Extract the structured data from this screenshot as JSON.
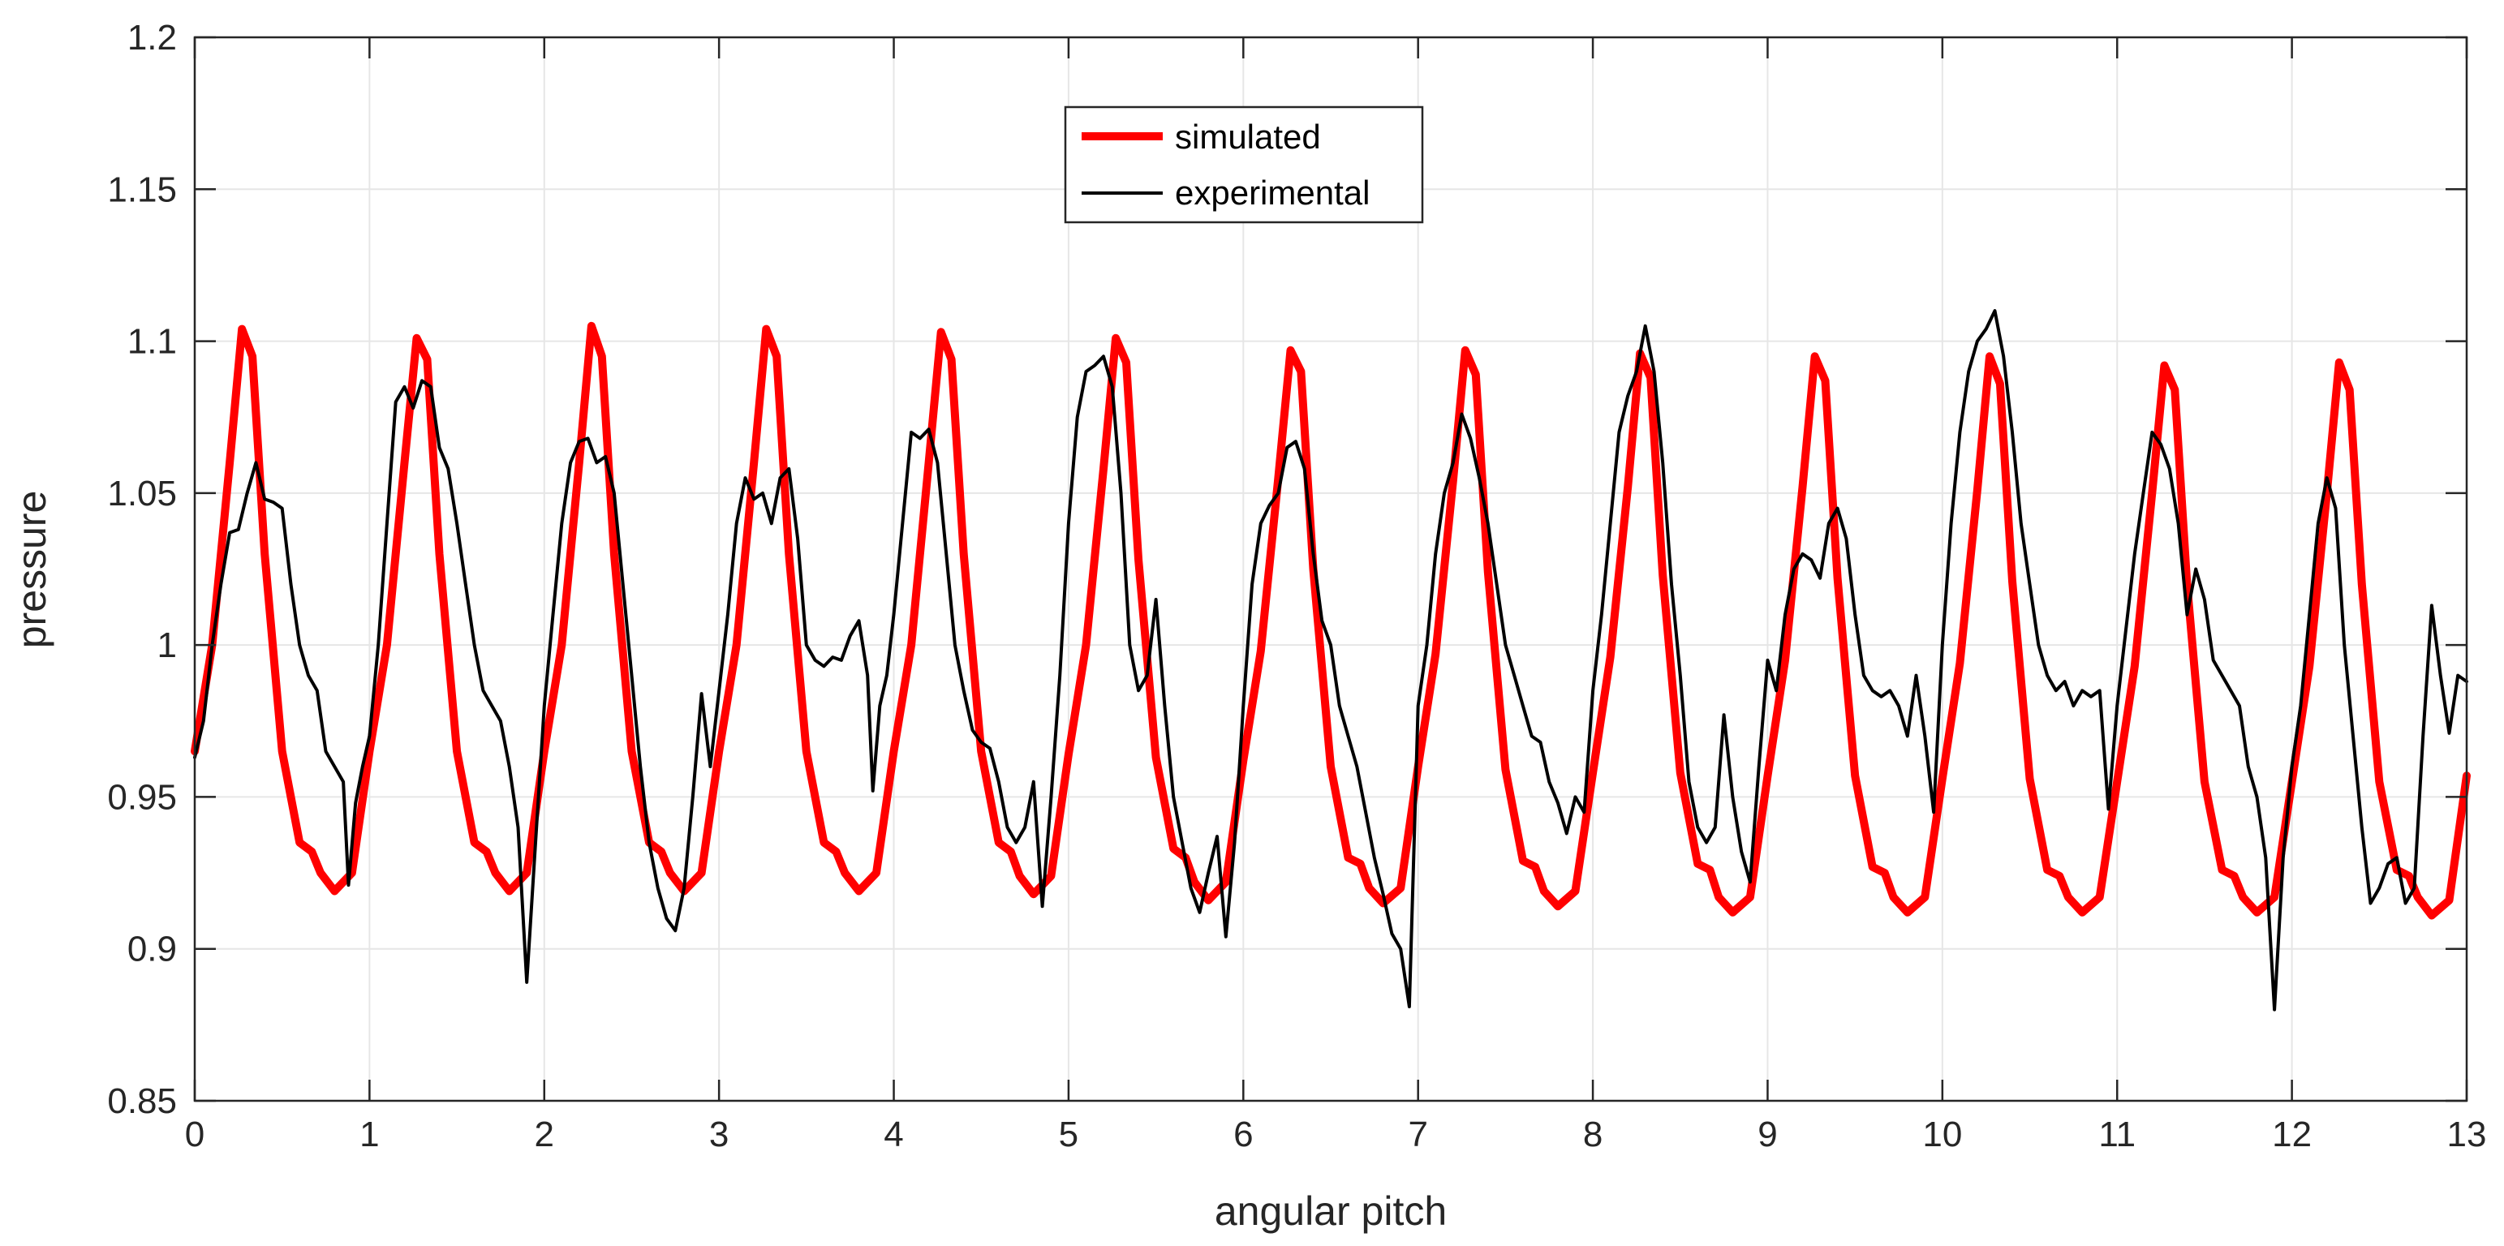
{
  "chart_data": {
    "type": "line",
    "xlabel": "angular pitch",
    "ylabel": "pressure",
    "xlim": [
      0,
      13
    ],
    "ylim": [
      0.85,
      1.2
    ],
    "xticks": [
      0,
      1,
      2,
      3,
      4,
      5,
      6,
      7,
      8,
      9,
      10,
      11,
      12,
      13
    ],
    "yticks": [
      0.85,
      0.9,
      0.95,
      1,
      1.05,
      1.1,
      1.15,
      1.2
    ],
    "xtick_labels": [
      "0",
      "1",
      "2",
      "3",
      "4",
      "5",
      "6",
      "7",
      "8",
      "9",
      "10",
      "11",
      "12",
      "13"
    ],
    "ytick_labels": [
      "0.85",
      "0.9",
      "0.95",
      "1",
      "1.05",
      "1.1",
      "1.15",
      "1.2"
    ],
    "grid": true,
    "legend_position": "top-center",
    "series": [
      {
        "name": "simulated",
        "color": "#ff0000",
        "x": [
          0,
          0.1,
          0.2,
          0.27,
          0.33,
          0.4,
          0.5,
          0.6,
          0.67,
          0.72,
          0.8,
          0.9,
          1.0,
          1.1,
          1.2,
          1.27,
          1.33,
          1.4,
          1.5,
          1.6,
          1.67,
          1.72,
          1.8,
          1.9,
          2.0,
          2.1,
          2.2,
          2.27,
          2.33,
          2.4,
          2.5,
          2.6,
          2.67,
          2.72,
          2.8,
          2.9,
          3.0,
          3.1,
          3.2,
          3.27,
          3.33,
          3.4,
          3.5,
          3.6,
          3.67,
          3.72,
          3.8,
          3.9,
          4.0,
          4.1,
          4.2,
          4.27,
          4.33,
          4.4,
          4.5,
          4.6,
          4.67,
          4.72,
          4.8,
          4.9,
          5.0,
          5.1,
          5.2,
          5.27,
          5.33,
          5.4,
          5.5,
          5.6,
          5.67,
          5.72,
          5.8,
          5.9,
          6.0,
          6.1,
          6.2,
          6.27,
          6.33,
          6.4,
          6.5,
          6.6,
          6.67,
          6.72,
          6.8,
          6.9,
          7.0,
          7.1,
          7.2,
          7.27,
          7.33,
          7.4,
          7.5,
          7.6,
          7.67,
          7.72,
          7.8,
          7.9,
          8.0,
          8.1,
          8.2,
          8.27,
          8.33,
          8.4,
          8.5,
          8.6,
          8.67,
          8.72,
          8.8,
          8.9,
          9.0,
          9.1,
          9.2,
          9.27,
          9.33,
          9.4,
          9.5,
          9.6,
          9.67,
          9.72,
          9.8,
          9.9,
          10.0,
          10.1,
          10.2,
          10.27,
          10.33,
          10.4,
          10.5,
          10.6,
          10.67,
          10.72,
          10.8,
          10.9,
          11.0,
          11.1,
          11.2,
          11.27,
          11.33,
          11.4,
          11.5,
          11.6,
          11.67,
          11.72,
          11.8,
          11.9,
          12.0,
          12.1,
          12.2,
          12.27,
          12.33,
          12.4,
          12.5,
          12.6,
          12.67,
          12.72,
          12.8,
          12.9,
          13.0
        ],
        "y": [
          0.965,
          1.0,
          1.06,
          1.104,
          1.095,
          1.03,
          0.965,
          0.935,
          0.932,
          0.925,
          0.919,
          0.925,
          0.965,
          1.0,
          1.06,
          1.101,
          1.094,
          1.03,
          0.965,
          0.935,
          0.932,
          0.925,
          0.919,
          0.925,
          0.965,
          1.0,
          1.06,
          1.105,
          1.095,
          1.03,
          0.965,
          0.935,
          0.932,
          0.925,
          0.919,
          0.925,
          0.965,
          1.0,
          1.06,
          1.104,
          1.095,
          1.03,
          0.965,
          0.935,
          0.932,
          0.925,
          0.919,
          0.925,
          0.965,
          1.0,
          1.06,
          1.103,
          1.094,
          1.03,
          0.965,
          0.935,
          0.932,
          0.924,
          0.918,
          0.924,
          0.964,
          1.0,
          1.058,
          1.101,
          1.093,
          1.028,
          0.963,
          0.933,
          0.93,
          0.922,
          0.916,
          0.922,
          0.962,
          0.998,
          1.055,
          1.097,
          1.09,
          1.025,
          0.96,
          0.93,
          0.928,
          0.92,
          0.915,
          0.92,
          0.96,
          0.997,
          1.054,
          1.097,
          1.089,
          1.024,
          0.959,
          0.929,
          0.927,
          0.919,
          0.914,
          0.919,
          0.958,
          0.996,
          1.052,
          1.096,
          1.088,
          1.023,
          0.958,
          0.928,
          0.926,
          0.917,
          0.912,
          0.917,
          0.957,
          0.995,
          1.052,
          1.095,
          1.087,
          1.022,
          0.957,
          0.927,
          0.925,
          0.917,
          0.912,
          0.917,
          0.956,
          0.994,
          1.051,
          1.095,
          1.086,
          1.021,
          0.956,
          0.926,
          0.924,
          0.917,
          0.912,
          0.917,
          0.955,
          0.993,
          1.05,
          1.092,
          1.084,
          1.02,
          0.955,
          0.926,
          0.924,
          0.917,
          0.912,
          0.917,
          0.955,
          0.993,
          1.05,
          1.093,
          1.084,
          1.02,
          0.955,
          0.926,
          0.924,
          0.917,
          0.911,
          0.916,
          0.957
        ]
      },
      {
        "name": "experimental",
        "color": "#000000",
        "x": [
          0,
          0.05,
          0.1,
          0.15,
          0.2,
          0.25,
          0.3,
          0.35,
          0.4,
          0.45,
          0.5,
          0.55,
          0.6,
          0.65,
          0.7,
          0.75,
          0.8,
          0.85,
          0.88,
          0.92,
          0.96,
          1.0,
          1.05,
          1.1,
          1.15,
          1.2,
          1.25,
          1.3,
          1.35,
          1.4,
          1.45,
          1.5,
          1.55,
          1.6,
          1.65,
          1.7,
          1.75,
          1.8,
          1.85,
          1.9,
          1.95,
          2.0,
          2.05,
          2.1,
          2.15,
          2.2,
          2.25,
          2.3,
          2.35,
          2.4,
          2.45,
          2.5,
          2.55,
          2.6,
          2.65,
          2.7,
          2.75,
          2.8,
          2.85,
          2.9,
          2.95,
          3.0,
          3.05,
          3.1,
          3.15,
          3.2,
          3.25,
          3.3,
          3.35,
          3.4,
          3.45,
          3.5,
          3.55,
          3.6,
          3.65,
          3.7,
          3.75,
          3.8,
          3.85,
          3.88,
          3.92,
          3.96,
          4.0,
          4.05,
          4.1,
          4.15,
          4.2,
          4.25,
          4.3,
          4.35,
          4.4,
          4.45,
          4.5,
          4.55,
          4.6,
          4.65,
          4.7,
          4.75,
          4.8,
          4.85,
          4.9,
          4.95,
          5.0,
          5.05,
          5.1,
          5.15,
          5.2,
          5.25,
          5.3,
          5.35,
          5.4,
          5.45,
          5.5,
          5.55,
          5.6,
          5.65,
          5.7,
          5.75,
          5.8,
          5.85,
          5.9,
          5.95,
          6.0,
          6.05,
          6.1,
          6.15,
          6.2,
          6.25,
          6.3,
          6.35,
          6.4,
          6.45,
          6.5,
          6.55,
          6.6,
          6.65,
          6.7,
          6.75,
          6.8,
          6.85,
          6.9,
          6.95,
          7.0,
          7.05,
          7.1,
          7.15,
          7.2,
          7.25,
          7.3,
          7.35,
          7.4,
          7.45,
          7.5,
          7.55,
          7.6,
          7.65,
          7.7,
          7.75,
          7.8,
          7.85,
          7.9,
          7.95,
          8.0,
          8.05,
          8.1,
          8.15,
          8.2,
          8.25,
          8.3,
          8.35,
          8.4,
          8.45,
          8.5,
          8.55,
          8.6,
          8.65,
          8.7,
          8.75,
          8.8,
          8.85,
          8.9,
          8.95,
          9.0,
          9.05,
          9.1,
          9.15,
          9.2,
          9.25,
          9.3,
          9.35,
          9.4,
          9.45,
          9.5,
          9.55,
          9.6,
          9.65,
          9.7,
          9.75,
          9.8,
          9.85,
          9.9,
          9.95,
          10.0,
          10.05,
          10.1,
          10.15,
          10.2,
          10.25,
          10.3,
          10.35,
          10.4,
          10.45,
          10.5,
          10.55,
          10.6,
          10.65,
          10.7,
          10.75,
          10.8,
          10.85,
          10.9,
          10.95,
          11.0,
          11.05,
          11.1,
          11.15,
          11.2,
          11.25,
          11.3,
          11.35,
          11.4,
          11.45,
          11.5,
          11.55,
          11.6,
          11.65,
          11.7,
          11.75,
          11.8,
          11.85,
          11.9,
          11.95,
          12.0,
          12.05,
          12.1,
          12.15,
          12.2,
          12.25,
          12.3,
          12.35,
          12.4,
          12.45,
          12.5,
          12.55,
          12.6,
          12.65,
          12.7,
          12.75,
          12.8,
          12.85,
          12.9,
          12.95,
          13.0
        ],
        "y": [
          0.963,
          0.975,
          1.0,
          1.02,
          1.037,
          1.038,
          1.05,
          1.06,
          1.048,
          1.047,
          1.045,
          1.02,
          1.0,
          0.99,
          0.985,
          0.965,
          0.96,
          0.955,
          0.921,
          0.948,
          0.96,
          0.97,
          1.0,
          1.04,
          1.08,
          1.085,
          1.078,
          1.087,
          1.085,
          1.065,
          1.058,
          1.04,
          1.02,
          1.0,
          0.985,
          0.98,
          0.975,
          0.96,
          0.94,
          0.889,
          0.935,
          0.98,
          1.01,
          1.04,
          1.06,
          1.067,
          1.068,
          1.06,
          1.062,
          1.05,
          1.02,
          0.99,
          0.96,
          0.935,
          0.92,
          0.91,
          0.906,
          0.92,
          0.95,
          0.984,
          0.96,
          0.985,
          1.01,
          1.04,
          1.055,
          1.048,
          1.05,
          1.04,
          1.055,
          1.058,
          1.035,
          1.0,
          0.995,
          0.993,
          0.996,
          0.995,
          1.003,
          1.008,
          0.99,
          0.952,
          0.98,
          0.99,
          1.01,
          1.04,
          1.07,
          1.068,
          1.071,
          1.06,
          1.03,
          1.0,
          0.985,
          0.972,
          0.968,
          0.966,
          0.955,
          0.94,
          0.935,
          0.94,
          0.955,
          0.914,
          0.95,
          0.99,
          1.04,
          1.075,
          1.09,
          1.092,
          1.095,
          1.085,
          1.05,
          1.0,
          0.985,
          0.99,
          1.015,
          0.98,
          0.95,
          0.935,
          0.92,
          0.912,
          0.925,
          0.937,
          0.904,
          0.935,
          0.98,
          1.02,
          1.04,
          1.046,
          1.05,
          1.065,
          1.067,
          1.058,
          1.03,
          1.008,
          1.0,
          0.98,
          0.97,
          0.96,
          0.945,
          0.93,
          0.918,
          0.905,
          0.9,
          0.881,
          0.98,
          1.0,
          1.03,
          1.05,
          1.06,
          1.076,
          1.068,
          1.055,
          1.04,
          1.02,
          1.0,
          0.99,
          0.98,
          0.97,
          0.968,
          0.955,
          0.948,
          0.938,
          0.95,
          0.945,
          0.985,
          1.01,
          1.04,
          1.07,
          1.082,
          1.09,
          1.105,
          1.09,
          1.06,
          1.02,
          0.99,
          0.955,
          0.94,
          0.935,
          0.94,
          0.977,
          0.95,
          0.932,
          0.922,
          0.96,
          0.995,
          0.985,
          1.01,
          1.025,
          1.03,
          1.028,
          1.022,
          1.04,
          1.045,
          1.035,
          1.01,
          0.99,
          0.985,
          0.983,
          0.985,
          0.98,
          0.97,
          0.99,
          0.97,
          0.945,
          1.0,
          1.04,
          1.07,
          1.09,
          1.1,
          1.104,
          1.11,
          1.095,
          1.07,
          1.04,
          1.02,
          1.0,
          0.99,
          0.985,
          0.988,
          0.98,
          0.985,
          0.983,
          0.985,
          0.946,
          0.98,
          1.005,
          1.03,
          1.05,
          1.07,
          1.066,
          1.058,
          1.04,
          1.01,
          1.025,
          1.015,
          0.995,
          0.99,
          0.985,
          0.98,
          0.96,
          0.95,
          0.93,
          0.88,
          0.93,
          0.96,
          0.98,
          1.01,
          1.04,
          1.055,
          1.045,
          1.0,
          0.97,
          0.94,
          0.915,
          0.92,
          0.928,
          0.93,
          0.915,
          0.92,
          0.97,
          1.013,
          0.99,
          0.971,
          0.99,
          0.988
        ]
      }
    ]
  }
}
